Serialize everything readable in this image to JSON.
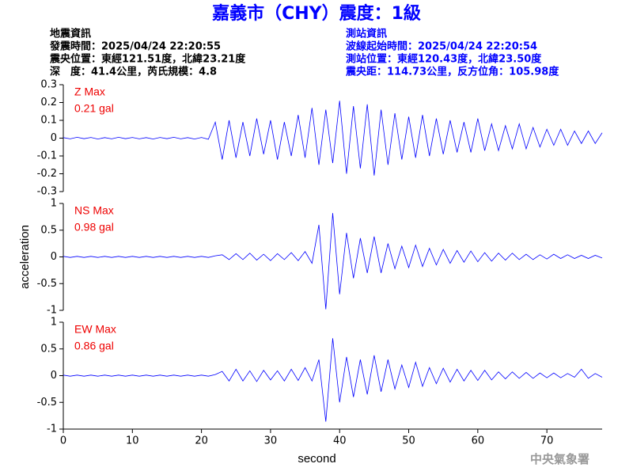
{
  "header": {
    "title": "嘉義市（CHY）震度：1級",
    "left": [
      "地震資訊",
      "發震時間：2025/04/24 22:20:55",
      "震央位置：東經121.51度，北緯23.21度",
      "深　度：41.4公里，芮氏規模：4.8"
    ],
    "right": [
      "測站資訊",
      "波線起始時間：2025/04/24 22:20:54",
      "測站位置：東經120.43度，北緯23.50度",
      "震央距：114.73公里，反方位角：105.98度"
    ],
    "footer": "中央氣象署"
  },
  "chart_data": [
    {
      "type": "line",
      "color": "#0000ff",
      "xlim": [
        0,
        78
      ],
      "ylim": [
        -0.3,
        0.3
      ],
      "yticks": [
        0.3,
        0.2,
        0.1,
        0,
        -0.1,
        -0.2,
        -0.3
      ],
      "annotation": [
        "Z Max",
        "0.21 gal"
      ],
      "x": [
        0,
        1,
        2,
        3,
        4,
        5,
        6,
        7,
        8,
        9,
        10,
        11,
        12,
        13,
        14,
        15,
        16,
        17,
        18,
        19,
        20,
        21,
        22,
        23,
        24,
        25,
        26,
        27,
        28,
        29,
        30,
        31,
        32,
        33,
        34,
        35,
        36,
        37,
        38,
        39,
        40,
        41,
        42,
        43,
        44,
        45,
        46,
        47,
        48,
        49,
        50,
        51,
        52,
        53,
        54,
        55,
        56,
        57,
        58,
        59,
        60,
        61,
        62,
        63,
        64,
        65,
        66,
        67,
        68,
        69,
        70,
        71,
        72,
        73,
        74,
        75,
        76,
        77,
        78
      ],
      "values": [
        0.003,
        -0.004,
        0.005,
        -0.003,
        0.004,
        -0.005,
        0.003,
        -0.004,
        0.005,
        -0.003,
        0.004,
        -0.004,
        0.003,
        -0.005,
        0.004,
        -0.003,
        0.005,
        -0.004,
        0.003,
        -0.005,
        0.004,
        -0.006,
        0.09,
        -0.12,
        0.1,
        -0.11,
        0.09,
        -0.1,
        0.11,
        -0.09,
        0.1,
        -0.12,
        0.09,
        -0.1,
        0.13,
        -0.11,
        0.17,
        -0.15,
        0.16,
        -0.14,
        0.21,
        -0.2,
        0.18,
        -0.17,
        0.19,
        -0.21,
        0.16,
        -0.15,
        0.14,
        -0.12,
        0.12,
        -0.11,
        0.13,
        -0.1,
        0.11,
        -0.09,
        0.1,
        -0.08,
        0.09,
        -0.08,
        0.11,
        -0.07,
        0.08,
        -0.07,
        0.07,
        -0.06,
        0.08,
        -0.06,
        0.06,
        -0.05,
        0.05,
        -0.04,
        0.05,
        -0.04,
        0.04,
        -0.03,
        0.04,
        -0.03,
        0.03
      ]
    },
    {
      "type": "line",
      "color": "#0000ff",
      "xlim": [
        0,
        78
      ],
      "ylim": [
        -1,
        1
      ],
      "yticks": [
        1,
        0.5,
        0,
        -0.5,
        -1
      ],
      "annotation": [
        "NS Max",
        "0.98 gal"
      ],
      "y_label": "acceleration",
      "x": [
        0,
        1,
        2,
        3,
        4,
        5,
        6,
        7,
        8,
        9,
        10,
        11,
        12,
        13,
        14,
        15,
        16,
        17,
        18,
        19,
        20,
        21,
        22,
        23,
        24,
        25,
        26,
        27,
        28,
        29,
        30,
        31,
        32,
        33,
        34,
        35,
        36,
        37,
        38,
        39,
        40,
        41,
        42,
        43,
        44,
        45,
        46,
        47,
        48,
        49,
        50,
        51,
        52,
        53,
        54,
        55,
        56,
        57,
        58,
        59,
        60,
        61,
        62,
        63,
        64,
        65,
        66,
        67,
        68,
        69,
        70,
        71,
        72,
        73,
        74,
        75,
        76,
        77,
        78
      ],
      "values": [
        0.01,
        -0.01,
        0.01,
        -0.01,
        0.01,
        -0.01,
        0.01,
        -0.01,
        0.01,
        -0.01,
        0.01,
        -0.01,
        0.01,
        -0.01,
        0.01,
        -0.01,
        0.01,
        -0.01,
        0.01,
        -0.01,
        0.01,
        -0.01,
        0.02,
        0.04,
        -0.05,
        0.06,
        -0.05,
        0.07,
        -0.06,
        0.05,
        -0.07,
        0.06,
        -0.05,
        0.08,
        -0.07,
        0.1,
        -0.12,
        0.6,
        -0.98,
        0.82,
        -0.7,
        0.45,
        -0.4,
        0.35,
        -0.3,
        0.38,
        -0.3,
        0.25,
        -0.22,
        0.2,
        -0.2,
        0.22,
        -0.18,
        0.16,
        -0.15,
        0.14,
        -0.12,
        0.12,
        -0.1,
        0.11,
        -0.09,
        0.08,
        -0.08,
        0.07,
        -0.06,
        0.07,
        -0.05,
        0.05,
        -0.05,
        0.04,
        -0.04,
        0.05,
        -0.03,
        0.04,
        -0.03,
        0.03,
        -0.03,
        0.03,
        -0.02
      ]
    },
    {
      "type": "line",
      "color": "#0000ff",
      "xlim": [
        0,
        78
      ],
      "ylim": [
        -1,
        1
      ],
      "yticks": [
        1,
        0.5,
        0,
        -0.5,
        -1
      ],
      "annotation": [
        "EW Max",
        "0.86 gal"
      ],
      "xticks": [
        0,
        10,
        20,
        30,
        40,
        50,
        60,
        70
      ],
      "x_label": "second",
      "x": [
        0,
        1,
        2,
        3,
        4,
        5,
        6,
        7,
        8,
        9,
        10,
        11,
        12,
        13,
        14,
        15,
        16,
        17,
        18,
        19,
        20,
        21,
        22,
        23,
        24,
        25,
        26,
        27,
        28,
        29,
        30,
        31,
        32,
        33,
        34,
        35,
        36,
        37,
        38,
        39,
        40,
        41,
        42,
        43,
        44,
        45,
        46,
        47,
        48,
        49,
        50,
        51,
        52,
        53,
        54,
        55,
        56,
        57,
        58,
        59,
        60,
        61,
        62,
        63,
        64,
        65,
        66,
        67,
        68,
        69,
        70,
        71,
        72,
        73,
        74,
        75,
        76,
        77,
        78
      ],
      "values": [
        0.01,
        -0.01,
        0.01,
        -0.01,
        0.01,
        -0.01,
        0.01,
        -0.01,
        0.01,
        -0.01,
        0.01,
        -0.01,
        0.01,
        -0.01,
        0.01,
        -0.01,
        0.01,
        -0.01,
        0.01,
        -0.01,
        0.01,
        -0.01,
        0.02,
        0.08,
        -0.1,
        0.12,
        -0.1,
        0.09,
        -0.11,
        0.1,
        -0.08,
        0.09,
        -0.1,
        0.12,
        -0.09,
        0.15,
        -0.1,
        0.3,
        -0.86,
        0.7,
        -0.5,
        0.35,
        -0.4,
        0.3,
        -0.35,
        0.38,
        -0.3,
        0.3,
        -0.25,
        0.2,
        -0.22,
        0.25,
        -0.2,
        0.15,
        -0.15,
        0.14,
        -0.12,
        0.12,
        -0.1,
        0.1,
        -0.09,
        0.1,
        -0.08,
        0.07,
        -0.06,
        0.07,
        -0.05,
        0.06,
        -0.05,
        0.05,
        -0.04,
        0.05,
        -0.04,
        0.04,
        -0.03,
        0.12,
        -0.05,
        0.04,
        -0.03
      ]
    }
  ]
}
